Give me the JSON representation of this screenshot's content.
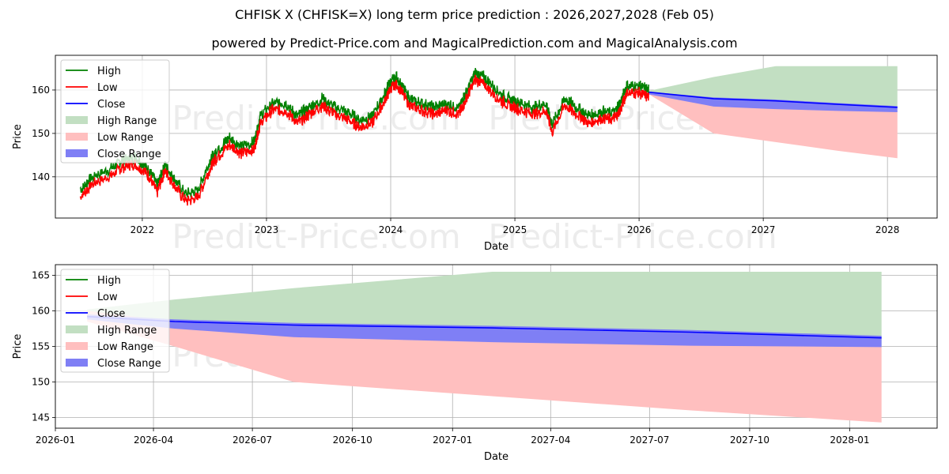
{
  "title": "CHFISK X (CHFISK=X) long term price prediction : 2026,2027,2028 (Feb 05)",
  "subtitle": "powered by Predict-Price.com and MagicalPrediction.com and MagicalAnalysis.com",
  "watermark": "Predict-Price.com",
  "colors": {
    "high": "#008000",
    "low": "#ff0000",
    "close": "#0000ff",
    "high_range": "#c2dfc2",
    "low_range": "#ffbfbf",
    "close_range": "#7f7ff5",
    "grid": "#b0b0b0",
    "watermark": "#ececec"
  },
  "chart_data": [
    {
      "id": "history",
      "type": "line",
      "title": "",
      "xlabel": "Date",
      "ylabel": "Price",
      "xlim": [
        2021.3,
        2028.4
      ],
      "ylim": [
        130.5,
        168
      ],
      "x_ticks": [
        2022,
        2023,
        2024,
        2025,
        2026,
        2027,
        2028
      ],
      "x_tick_labels": [
        "2022",
        "2023",
        "2024",
        "2025",
        "2026",
        "2027",
        "2028"
      ],
      "y_ticks": [
        140,
        150,
        160
      ],
      "y_tick_labels": [
        "140",
        "150",
        "160"
      ],
      "grid": true,
      "legend": [
        "High",
        "Low",
        "Close",
        "High Range",
        "Low Range",
        "Close Range"
      ],
      "legend_location": "upper-left",
      "history": {
        "x": [
          2021.5,
          2021.6,
          2021.75,
          2021.85,
          2021.95,
          2022.05,
          2022.12,
          2022.18,
          2022.25,
          2022.35,
          2022.45,
          2022.55,
          2022.6,
          2022.7,
          2022.8,
          2022.9,
          2022.95,
          2023.05,
          2023.15,
          2023.25,
          2023.35,
          2023.45,
          2023.55,
          2023.65,
          2023.75,
          2023.85,
          2023.95,
          2024.0,
          2024.05,
          2024.15,
          2024.25,
          2024.35,
          2024.45,
          2024.55,
          2024.6,
          2024.68,
          2024.75,
          2024.85,
          2024.95,
          2025.05,
          2025.15,
          2025.25,
          2025.3,
          2025.4,
          2025.5,
          2025.6,
          2025.7,
          2025.8,
          2025.85,
          2025.9,
          2026.0,
          2026.08
        ],
        "close": [
          136,
          139,
          141,
          143,
          143.5,
          141,
          137,
          142,
          139,
          135,
          136,
          143,
          145,
          148,
          146,
          147,
          153,
          156,
          156,
          153,
          155,
          157,
          155,
          154,
          152,
          153,
          158,
          161,
          162,
          157,
          156,
          155,
          156,
          155,
          158,
          163,
          162,
          159,
          157,
          156,
          155,
          156,
          151,
          157,
          155,
          153,
          154,
          154,
          156,
          160,
          160,
          159
        ],
        "spread": 1.4
      },
      "forecast": {
        "x": [
          2026.08,
          2026.6,
          2027.1,
          2027.6,
          2028.08
        ],
        "close": [
          159.5,
          158,
          157.5,
          156.7,
          156
        ],
        "high_upper": [
          159.8,
          163,
          165.5,
          165.5,
          165.5
        ],
        "low_lower": [
          159,
          150,
          148,
          146,
          144.3
        ],
        "close_upper": [
          159.6,
          158.3,
          157.8,
          157,
          156.3
        ],
        "close_lower": [
          159,
          156.2,
          155.6,
          155.2,
          154.9
        ]
      }
    },
    {
      "id": "forecast",
      "type": "line",
      "title": "",
      "xlabel": "Date",
      "ylabel": "Price",
      "xlim": [
        2026.0,
        2028.22
      ],
      "ylim": [
        143.5,
        166.5
      ],
      "x_ticks": [
        2026.0,
        2026.247,
        2026.496,
        2026.748,
        2027.0,
        2027.247,
        2027.496,
        2027.748,
        2028.0
      ],
      "x_tick_labels": [
        "2026-01",
        "2026-04",
        "2026-07",
        "2026-10",
        "2027-01",
        "2027-04",
        "2027-07",
        "2027-10",
        "2028-01"
      ],
      "y_ticks": [
        145,
        150,
        155,
        160,
        165
      ],
      "y_tick_labels": [
        "145",
        "150",
        "155",
        "160",
        "165"
      ],
      "grid": true,
      "legend": [
        "High",
        "Low",
        "Close",
        "High Range",
        "Low Range",
        "Close Range"
      ],
      "legend_location": "upper-left",
      "forecast": {
        "x": [
          2026.08,
          2026.3,
          2026.6,
          2027.1,
          2027.6,
          2028.08
        ],
        "close": [
          159.2,
          158.5,
          158,
          157.6,
          157,
          156.2
        ],
        "high_upper": [
          160.2,
          161.6,
          163.2,
          165.5,
          165.5,
          165.5
        ],
        "high_lower": [
          159,
          158.2,
          156.3,
          155.6,
          155.1,
          154.9
        ],
        "low_upper": [
          160,
          158.5,
          157.5,
          155.7,
          155.3,
          155
        ],
        "low_lower": [
          158.5,
          155,
          150,
          148,
          146,
          144.3
        ],
        "close_upper": [
          159.5,
          158.8,
          158.3,
          157.9,
          157.3,
          156.5
        ],
        "close_lower": [
          158.8,
          157.5,
          156.3,
          155.6,
          155.1,
          154.9
        ]
      }
    }
  ]
}
